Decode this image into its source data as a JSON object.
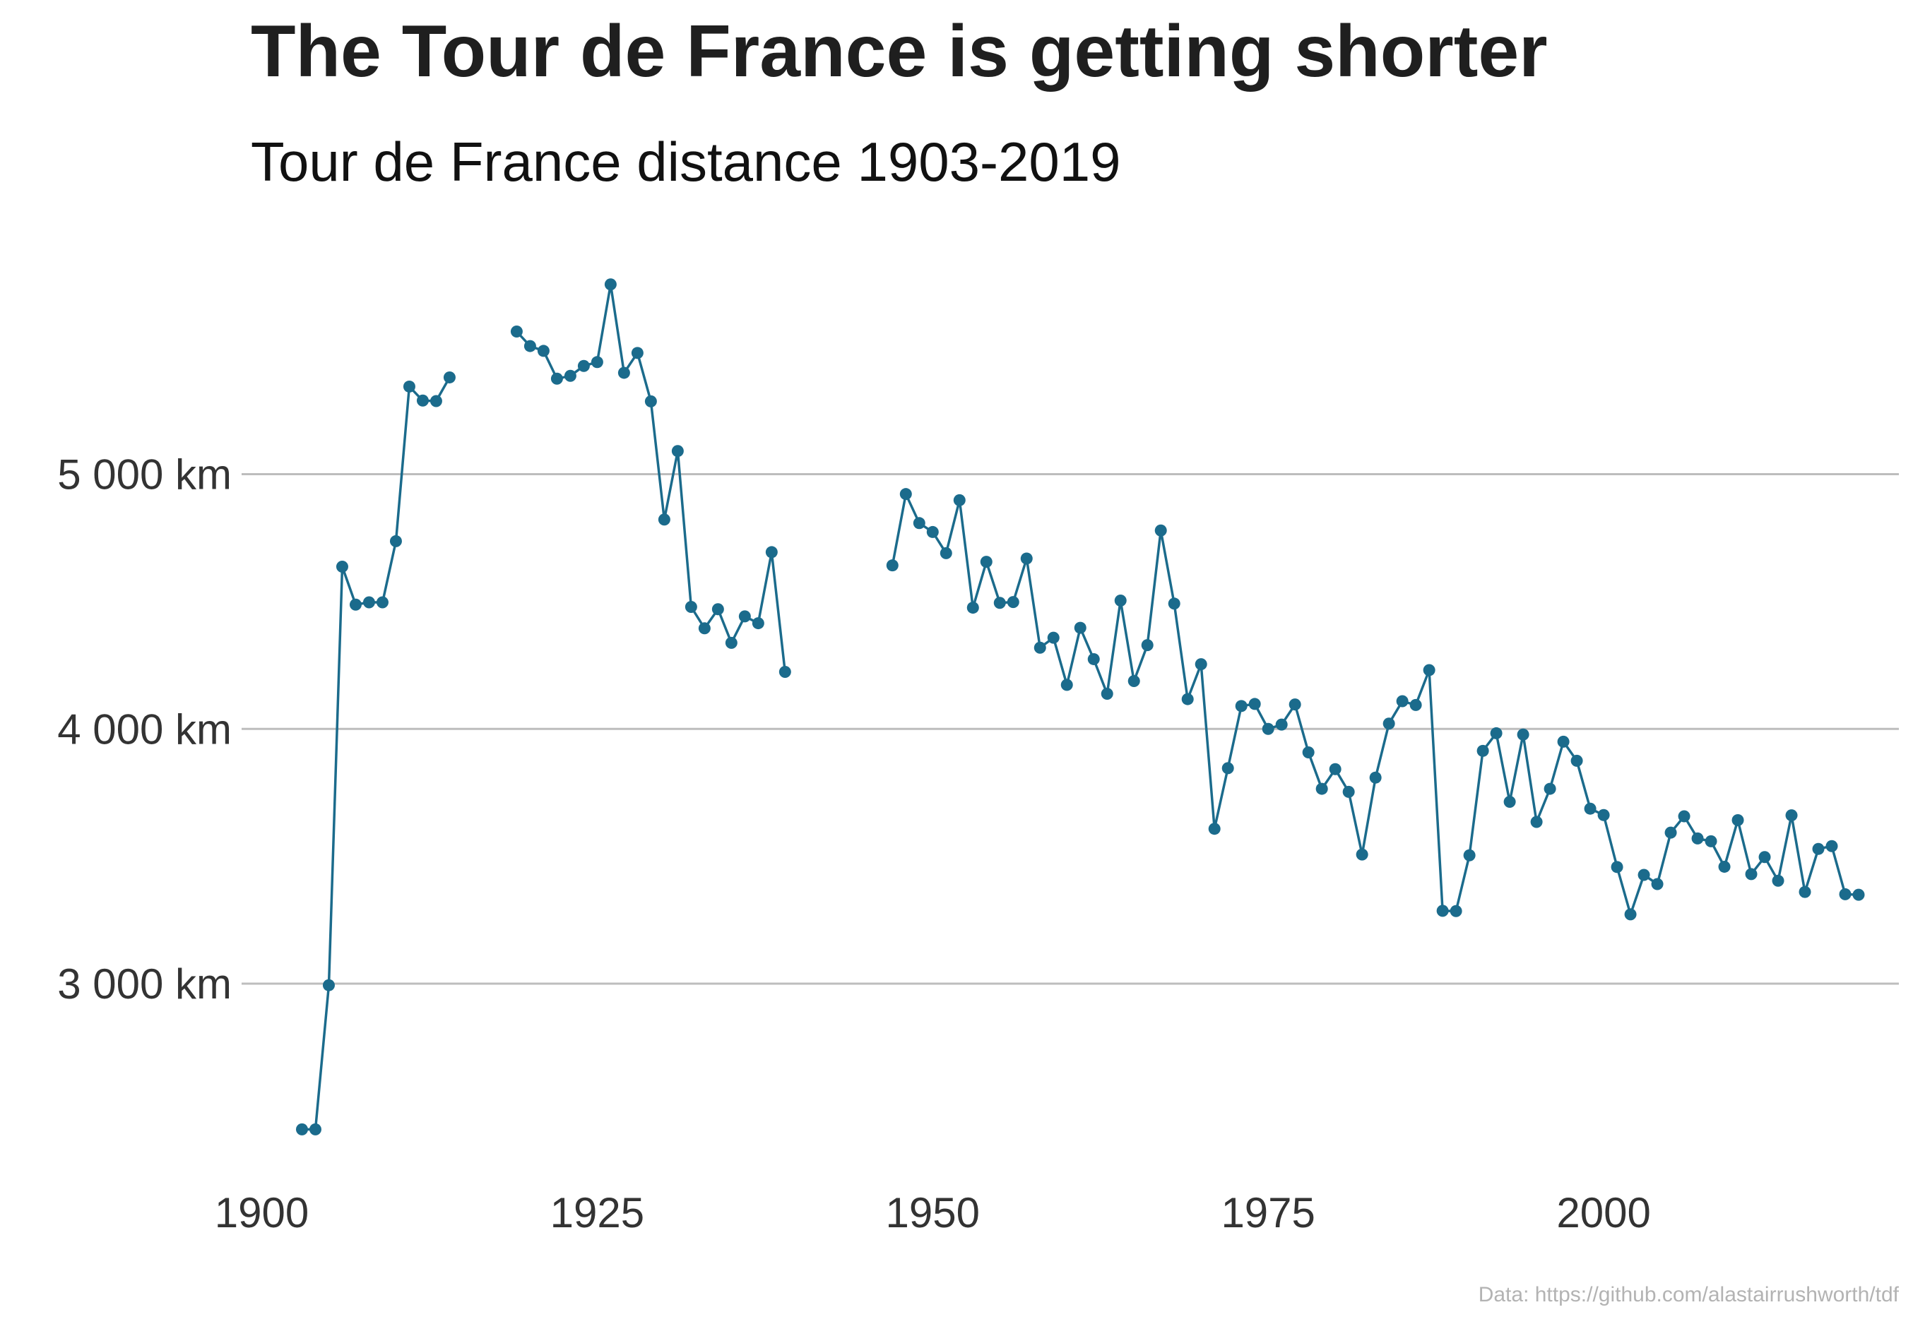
{
  "chart_data": {
    "type": "line",
    "title": "The Tour de France is getting shorter",
    "subtitle": "Tour de France distance 1903-2019",
    "caption": "Data: https://github.com/alastairrushworth/tdf",
    "xlabel": "",
    "ylabel": "",
    "xlim": [
      1898.5,
      2022
    ],
    "ylim": [
      2260,
      5980
    ],
    "x_ticks": [
      1900,
      1925,
      1950,
      1975,
      2000
    ],
    "x_tick_labels": [
      "1900",
      "1925",
      "1950",
      "1975",
      "2000"
    ],
    "y_ticks": [
      3000,
      4000,
      5000
    ],
    "y_tick_labels": [
      "3 000 km",
      "4 000 km",
      "5 000 km"
    ],
    "grid": "horizontal major lines only",
    "colors": {
      "series": "#1b6b8c",
      "grid": "#bdbdbd",
      "caption": "#b3b3b3"
    },
    "segments": [
      {
        "x": [
          1903,
          1904,
          1905,
          1906,
          1907,
          1908,
          1909,
          1910,
          1911,
          1912,
          1913,
          1914
        ],
        "y": [
          2428,
          2428,
          2994,
          4637,
          4488,
          4497,
          4497,
          4737,
          5344,
          5289,
          5287,
          5380
        ]
      },
      {
        "x": [
          1919,
          1920,
          1921,
          1922,
          1923,
          1924,
          1925,
          1926,
          1927,
          1928,
          1929,
          1930,
          1931,
          1932,
          1933,
          1934,
          1935,
          1936,
          1937,
          1938,
          1939
        ],
        "y": [
          5560,
          5503,
          5484,
          5375,
          5386,
          5425,
          5440,
          5745,
          5398,
          5476,
          5286,
          4822,
          5091,
          4479,
          4395,
          4470,
          4338,
          4442,
          4415,
          4694,
          4224
        ]
      },
      {
        "x": [
          1947,
          1948,
          1949,
          1950,
          1951,
          1952,
          1953,
          1954,
          1955,
          1956,
          1957,
          1958,
          1959,
          1960,
          1961,
          1962,
          1963,
          1964,
          1965,
          1966,
          1967,
          1968,
          1969,
          1970,
          1971,
          1972,
          1973,
          1974,
          1975,
          1976,
          1977,
          1978,
          1979,
          1980,
          1981,
          1982,
          1983,
          1984,
          1985,
          1986,
          1987,
          1988,
          1989,
          1990,
          1991,
          1992,
          1993,
          1994,
          1995,
          1996,
          1997,
          1998,
          1999,
          2000,
          2001,
          2002,
          2003,
          2004,
          2005,
          2006,
          2007,
          2008,
          2009,
          2010,
          2011,
          2012,
          2013,
          2014,
          2015,
          2016,
          2017,
          2018,
          2019
        ],
        "y": [
          4642,
          4922,
          4808,
          4773,
          4690,
          4898,
          4476,
          4656,
          4495,
          4498,
          4669,
          4319,
          4358,
          4173,
          4397,
          4274,
          4138,
          4504,
          4188,
          4329,
          4779,
          4492,
          4117,
          4254,
          3608,
          3846,
          4090,
          4098,
          4000,
          4017,
          4096,
          3908,
          3765,
          3842,
          3753,
          3507,
          3809,
          4021,
          4109,
          4094,
          4231,
          3286,
          3285,
          3504,
          3914,
          3983,
          3714,
          3978,
          3635,
          3765,
          3950,
          3875,
          3687,
          3662,
          3458,
          3272,
          3427,
          3391,
          3593,
          3657,
          3570,
          3559,
          3459,
          3642,
          3430,
          3497,
          3404,
          3661,
          3360,
          3529,
          3540,
          3351,
          3349
        ]
      }
    ]
  }
}
